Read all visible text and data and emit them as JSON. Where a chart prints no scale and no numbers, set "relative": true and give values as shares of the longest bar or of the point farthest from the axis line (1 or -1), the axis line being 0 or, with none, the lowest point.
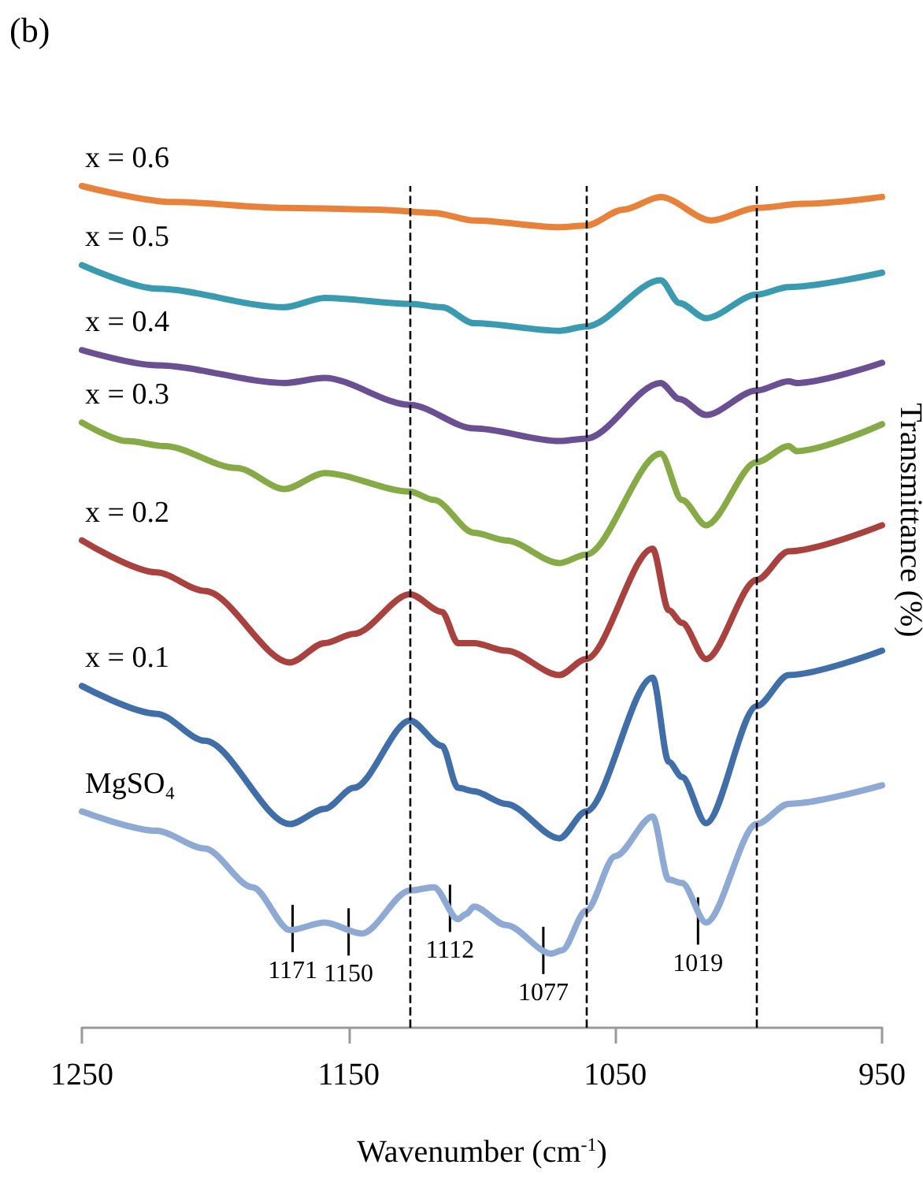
{
  "chart_data": {
    "type": "line",
    "relative": true,
    "xlabel": "Wavenumber (cm$^{-1}$)",
    "ylabel": "Transmittance (%)",
    "xlim": [
      1250,
      950
    ],
    "xticks": [
      1250,
      1150,
      1050,
      950
    ],
    "marker": "none",
    "line_style": "solid",
    "series": [
      {
        "name": "x = 0.6",
        "color": "#e8823a",
        "x": [
          1250,
          1216,
          1174,
          1139,
          1118,
          1103,
          1071,
          1061,
          1047,
          1033,
          1014,
          997,
          979,
          950
        ],
        "values": [
          1.0,
          0.981,
          0.974,
          0.972,
          0.968,
          0.959,
          0.951,
          0.953,
          0.972,
          0.987,
          0.959,
          0.974,
          0.979,
          0.987
        ]
      },
      {
        "name": "x = 0.5",
        "color": "#3a9ab0",
        "x": [
          1250,
          1222,
          1174,
          1159,
          1127,
          1115,
          1103,
          1071,
          1061,
          1033,
          1026,
          1016,
          997,
          985,
          950
        ],
        "values": [
          0.906,
          0.878,
          0.856,
          0.867,
          0.86,
          0.856,
          0.837,
          0.828,
          0.833,
          0.888,
          0.861,
          0.843,
          0.871,
          0.88,
          0.897
        ]
      },
      {
        "name": "x = 0.4",
        "color": "#6a4f93",
        "x": [
          1250,
          1222,
          1174,
          1159,
          1127,
          1103,
          1071,
          1061,
          1033,
          1026,
          1016,
          997,
          985,
          982,
          950
        ],
        "values": [
          0.805,
          0.787,
          0.766,
          0.772,
          0.74,
          0.712,
          0.697,
          0.7,
          0.766,
          0.747,
          0.728,
          0.757,
          0.768,
          0.766,
          0.79
        ]
      },
      {
        "name": "x = 0.3",
        "color": "#86ab46",
        "x": [
          1250,
          1233,
          1219,
          1192,
          1174,
          1159,
          1127,
          1118,
          1103,
          1091,
          1071,
          1061,
          1033,
          1025,
          1016,
          997,
          985,
          982,
          950
        ],
        "values": [
          0.719,
          0.697,
          0.691,
          0.665,
          0.64,
          0.659,
          0.637,
          0.627,
          0.588,
          0.579,
          0.552,
          0.562,
          0.682,
          0.627,
          0.597,
          0.672,
          0.691,
          0.685,
          0.717
        ]
      },
      {
        "name": "x = 0.2",
        "color": "#a9423f",
        "x": [
          1250,
          1222,
          1204,
          1172,
          1159,
          1148,
          1127,
          1115,
          1109,
          1103,
          1091,
          1071,
          1061,
          1036,
          1030,
          1025,
          1016,
          997,
          985,
          950
        ],
        "values": [
          0.579,
          0.541,
          0.519,
          0.434,
          0.457,
          0.468,
          0.515,
          0.494,
          0.457,
          0.457,
          0.448,
          0.419,
          0.438,
          0.569,
          0.496,
          0.481,
          0.438,
          0.532,
          0.566,
          0.597
        ]
      },
      {
        "name": "x = 0.1",
        "color": "#3f6ea8",
        "x": [
          1250,
          1222,
          1204,
          1172,
          1159,
          1148,
          1127,
          1115,
          1109,
          1103,
          1091,
          1071,
          1061,
          1036,
          1030,
          1025,
          1016,
          997,
          985,
          950
        ],
        "values": [
          0.406,
          0.373,
          0.341,
          0.242,
          0.26,
          0.285,
          0.365,
          0.335,
          0.285,
          0.281,
          0.266,
          0.225,
          0.257,
          0.416,
          0.316,
          0.298,
          0.243,
          0.382,
          0.419,
          0.448
        ]
      },
      {
        "name": "MgSO₄",
        "color": "#8eaad4",
        "x": [
          1250,
          1222,
          1204,
          1186,
          1172,
          1159,
          1145,
          1127,
          1118,
          1109,
          1106,
          1103,
          1091,
          1074,
          1070,
          1061,
          1050,
          1036,
          1030,
          1025,
          1016,
          997,
          985,
          950
        ],
        "values": [
          0.257,
          0.234,
          0.213,
          0.167,
          0.116,
          0.125,
          0.112,
          0.163,
          0.167,
          0.129,
          0.135,
          0.144,
          0.122,
          0.088,
          0.092,
          0.139,
          0.204,
          0.251,
          0.176,
          0.172,
          0.125,
          0.242,
          0.266,
          0.288
        ]
      }
    ],
    "ref_lines": [
      {
        "axis": "x",
        "value": 1127,
        "line_style": "dashed",
        "color": "#000000"
      },
      {
        "axis": "x",
        "value": 1061,
        "line_style": "dashed",
        "color": "#000000"
      },
      {
        "axis": "x",
        "value": 997,
        "line_style": "dashed",
        "color": "#000000"
      }
    ],
    "annotations": [
      "(b)",
      {
        "text": "1171",
        "x": 1171,
        "y": 0.116
      },
      {
        "text": "1150",
        "x": 1150,
        "y": 0.112
      },
      {
        "text": "1112",
        "x": 1112,
        "y": 0.14
      },
      {
        "text": "1077",
        "x": 1077,
        "y": 0.09
      },
      {
        "text": "1019",
        "x": 1019,
        "y": 0.125
      }
    ]
  }
}
